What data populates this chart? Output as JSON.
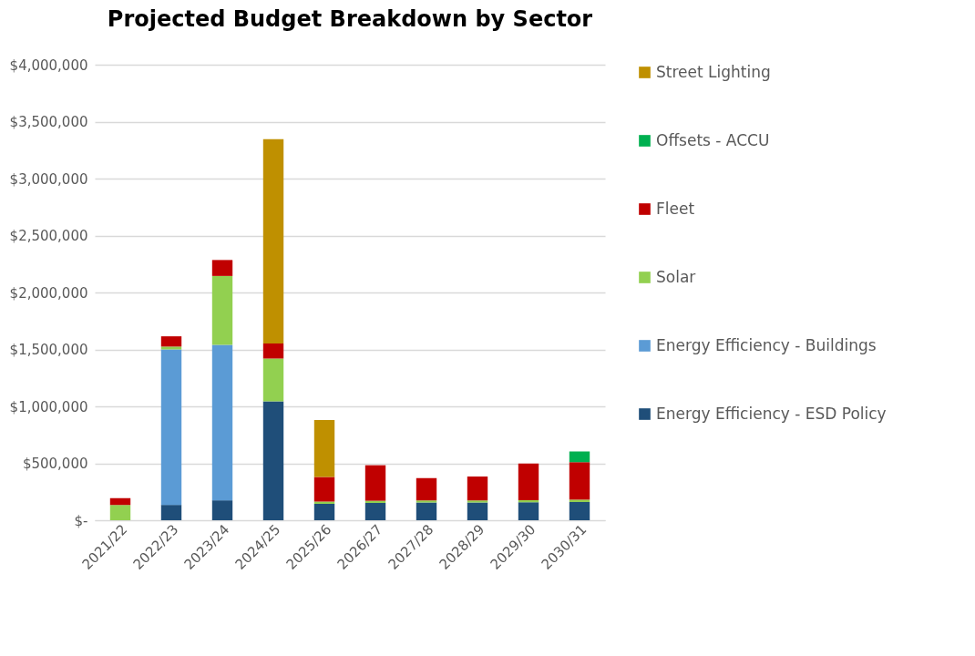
{
  "chart_data": {
    "type": "bar",
    "title": "Projected Budget Breakdown by Sector",
    "stacked": true,
    "categories": [
      "2021/22",
      "2022/23",
      "2023/24",
      "2024/25",
      "2025/26",
      "2026/27",
      "2027/28",
      "2028/29",
      "2029/30",
      "2030/31"
    ],
    "series": [
      {
        "name": "Energy Efficiency - ESD Policy",
        "color": "#1f4e79",
        "values": [
          0,
          135000,
          175000,
          1045000,
          145000,
          152000,
          156000,
          156000,
          158000,
          160000
        ]
      },
      {
        "name": "Energy Efficiency - Buildings",
        "color": "#5b9bd5",
        "values": [
          0,
          1365000,
          1365000,
          0,
          0,
          0,
          0,
          0,
          0,
          0
        ]
      },
      {
        "name": "Solar",
        "color": "#92d050",
        "values": [
          135000,
          25000,
          605000,
          375000,
          20000,
          19000,
          18000,
          18000,
          18000,
          21000
        ]
      },
      {
        "name": "Fleet",
        "color": "#c00000",
        "values": [
          60000,
          90000,
          140000,
          132000,
          215000,
          312000,
          196000,
          210000,
          322000,
          329000
        ]
      },
      {
        "name": "Offsets - ACCU",
        "color": "#00b050",
        "values": [
          0,
          0,
          0,
          0,
          0,
          0,
          0,
          0,
          0,
          94000
        ]
      },
      {
        "name": "Street Lighting",
        "color": "#bf9000",
        "values": [
          0,
          0,
          0,
          1795000,
          500000,
          0,
          0,
          0,
          0,
          0
        ]
      }
    ],
    "ylim": [
      0,
      4000000
    ],
    "yticks": [
      {
        "value": 0,
        "label": "$-"
      },
      {
        "value": 500000,
        "label": "$500,000"
      },
      {
        "value": 1000000,
        "label": "$1,000,000"
      },
      {
        "value": 1500000,
        "label": "$1,500,000"
      },
      {
        "value": 2000000,
        "label": "$2,000,000"
      },
      {
        "value": 2500000,
        "label": "$2,500,000"
      },
      {
        "value": 3000000,
        "label": "$3,000,000"
      },
      {
        "value": 3500000,
        "label": "$3,500,000"
      },
      {
        "value": 4000000,
        "label": "$4,000,000"
      }
    ],
    "grid": "y",
    "legend": "right"
  }
}
